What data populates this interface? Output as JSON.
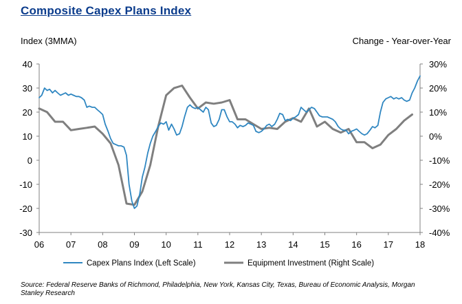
{
  "chart_data": {
    "type": "line",
    "title": "Composite  Capex  Plans  Index",
    "ylabel_left": "Index  (3MMA)",
    "ylabel_right": "Change - Year-over-Year",
    "x_ticks": [
      "06",
      "07",
      "08",
      "09",
      "10",
      "11",
      "12",
      "13",
      "14",
      "15",
      "16",
      "17",
      "18"
    ],
    "x_range": [
      2006,
      2018
    ],
    "y_left_ticks": [
      "40",
      "30",
      "20",
      "10",
      "0",
      "-10",
      "-20",
      "-30"
    ],
    "y_left_range": [
      -30,
      40
    ],
    "y_right_ticks": [
      "30%",
      "20%",
      "10%",
      "0%",
      "-10%",
      "-20%",
      "-30%",
      "-40%"
    ],
    "y_right_range": [
      -40,
      30
    ],
    "grid": false,
    "legend_position": "bottom",
    "series": [
      {
        "name": "Capex Plans Index (Left Scale)",
        "axis": "left",
        "color": "#2e86c1",
        "x": [
          2006.0,
          2006.08,
          2006.17,
          2006.25,
          2006.33,
          2006.42,
          2006.5,
          2006.58,
          2006.67,
          2006.75,
          2006.83,
          2006.92,
          2007.0,
          2007.08,
          2007.17,
          2007.25,
          2007.33,
          2007.42,
          2007.5,
          2007.58,
          2007.67,
          2007.75,
          2007.83,
          2007.92,
          2008.0,
          2008.08,
          2008.17,
          2008.25,
          2008.33,
          2008.42,
          2008.5,
          2008.58,
          2008.67,
          2008.75,
          2008.83,
          2008.92,
          2009.0,
          2009.08,
          2009.17,
          2009.25,
          2009.33,
          2009.42,
          2009.5,
          2009.58,
          2009.67,
          2009.75,
          2009.83,
          2009.92,
          2010.0,
          2010.08,
          2010.17,
          2010.25,
          2010.33,
          2010.42,
          2010.5,
          2010.58,
          2010.67,
          2010.75,
          2010.83,
          2010.92,
          2011.0,
          2011.08,
          2011.17,
          2011.25,
          2011.33,
          2011.42,
          2011.5,
          2011.58,
          2011.67,
          2011.75,
          2011.83,
          2011.92,
          2012.0,
          2012.08,
          2012.17,
          2012.25,
          2012.33,
          2012.42,
          2012.5,
          2012.58,
          2012.67,
          2012.75,
          2012.83,
          2012.92,
          2013.0,
          2013.08,
          2013.17,
          2013.25,
          2013.33,
          2013.42,
          2013.5,
          2013.58,
          2013.67,
          2013.75,
          2013.83,
          2013.92,
          2014.0,
          2014.08,
          2014.17,
          2014.25,
          2014.33,
          2014.42,
          2014.5,
          2014.58,
          2014.67,
          2014.75,
          2014.83,
          2014.92,
          2015.0,
          2015.08,
          2015.17,
          2015.25,
          2015.33,
          2015.42,
          2015.5,
          2015.58,
          2015.67,
          2015.75,
          2015.83,
          2015.92,
          2016.0,
          2016.08,
          2016.17,
          2016.25,
          2016.33,
          2016.42,
          2016.5,
          2016.58,
          2016.67,
          2016.75,
          2016.83,
          2016.92,
          2017.0,
          2017.08,
          2017.17,
          2017.25,
          2017.33,
          2017.42,
          2017.5,
          2017.58,
          2017.67,
          2017.75,
          2017.83,
          2017.92,
          2018.0
        ],
        "values": [
          26,
          27,
          30,
          29,
          29.5,
          28,
          29,
          28,
          27,
          27.5,
          28,
          27,
          27.5,
          27,
          26.5,
          26.5,
          26,
          25,
          22,
          22.5,
          22,
          22,
          21,
          20,
          19,
          15,
          12,
          9,
          7,
          6.5,
          6,
          6,
          5.5,
          2,
          -10,
          -17,
          -20,
          -19,
          -14,
          -7,
          -3,
          3,
          7,
          10,
          12,
          14,
          15.5,
          15,
          16,
          12.5,
          15,
          13,
          10.5,
          11,
          14,
          18,
          22,
          23,
          22,
          21.5,
          22,
          21,
          20,
          22,
          21,
          15.5,
          14,
          14.5,
          17,
          21,
          21,
          18,
          16,
          16,
          15,
          13.5,
          14.5,
          14,
          14.5,
          15.5,
          15,
          14.5,
          12,
          11.5,
          12,
          13,
          14.5,
          15,
          14,
          15,
          17,
          19.5,
          19,
          16.5,
          17,
          16.5,
          17.5,
          18,
          19,
          22,
          21,
          20,
          21,
          22,
          21.5,
          20,
          18.5,
          18,
          18,
          18,
          17.5,
          17,
          16,
          14,
          13,
          12.5,
          12.5,
          11,
          12,
          12.5,
          13,
          12,
          11,
          10.5,
          11,
          12.5,
          14,
          13.5,
          14.5,
          20,
          24,
          25.5,
          26,
          26.5,
          25.5,
          26,
          25.5,
          26,
          25,
          24.5,
          25,
          28,
          30,
          33,
          35
        ]
      },
      {
        "name": "Equipment Investment (Right Scale)",
        "axis": "right",
        "color": "#7f7f7f",
        "x": [
          2006.0,
          2006.25,
          2006.5,
          2006.75,
          2007.0,
          2007.25,
          2007.5,
          2007.75,
          2008.0,
          2008.25,
          2008.5,
          2008.75,
          2009.0,
          2009.25,
          2009.5,
          2009.75,
          2010.0,
          2010.25,
          2010.5,
          2010.75,
          2011.0,
          2011.25,
          2011.5,
          2011.75,
          2012.0,
          2012.25,
          2012.5,
          2012.75,
          2013.0,
          2013.25,
          2013.5,
          2013.75,
          2014.0,
          2014.25,
          2014.5,
          2014.75,
          2015.0,
          2015.25,
          2015.5,
          2015.75,
          2016.0,
          2016.25,
          2016.5,
          2016.75,
          2017.0,
          2017.25,
          2017.5,
          2017.75
        ],
        "values": [
          11.5,
          10,
          6,
          6,
          2.5,
          3,
          3.5,
          4,
          1,
          -3,
          -12,
          -28,
          -28.5,
          -23,
          -12,
          4,
          17,
          20,
          21,
          16,
          11.5,
          14,
          13.5,
          14,
          15,
          7,
          7,
          5,
          3,
          3.5,
          3,
          6,
          7.5,
          6,
          11.5,
          4,
          6,
          3,
          1.5,
          3,
          -2.5,
          -2.5,
          -5,
          -3.5,
          0.5,
          3,
          6.5,
          9
        ]
      }
    ]
  },
  "legend": {
    "items": [
      "Capex Plans Index (Left Scale)",
      "Equipment Investment (Right Scale)"
    ]
  },
  "source": "Source: Federal Reserve Banks of Richmond, Philadelphia, New York, Kansas City, Texas, Bureau of Economic Analysis, Morgan Stanley Research"
}
